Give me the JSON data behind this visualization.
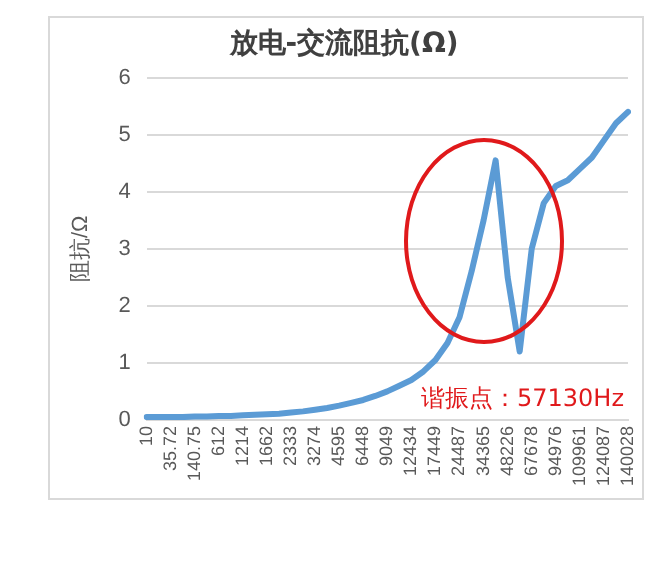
{
  "chart_data": {
    "type": "line",
    "title": "放电-交流阻抗(Ω)",
    "ylabel": "阻抗/Ω",
    "categories": [
      "10",
      null,
      "35.72",
      null,
      "140.75",
      null,
      "612",
      null,
      "1214",
      null,
      "1662",
      null,
      "2333",
      null,
      "3274",
      null,
      "4595",
      null,
      "6448",
      null,
      "9049",
      null,
      "12434",
      null,
      "17449",
      null,
      "24487",
      null,
      "34365",
      null,
      "48226",
      null,
      "67678",
      null,
      "94976",
      null,
      "109961",
      null,
      "124087",
      null,
      "140028"
    ],
    "series": [
      {
        "color": "#5b9bd5",
        "values": [
          0.05,
          0.05,
          0.05,
          0.05,
          0.06,
          0.06,
          0.07,
          0.07,
          0.08,
          0.09,
          0.1,
          0.11,
          0.13,
          0.15,
          0.18,
          0.21,
          0.25,
          0.3,
          0.35,
          0.42,
          0.5,
          0.6,
          0.7,
          0.85,
          1.05,
          1.35,
          1.8,
          2.6,
          3.5,
          4.55,
          2.5,
          1.2,
          3.0,
          3.8,
          4.1,
          4.2,
          4.4,
          4.6,
          4.9,
          5.2,
          5.4
        ]
      }
    ],
    "ylim": [
      0,
      6
    ],
    "yticks": [
      0,
      1,
      2,
      3,
      4,
      5,
      6
    ],
    "grid": "y",
    "marker": "none",
    "line_style": "solid",
    "annotations": [
      "谐振点：57130Hz"
    ]
  }
}
